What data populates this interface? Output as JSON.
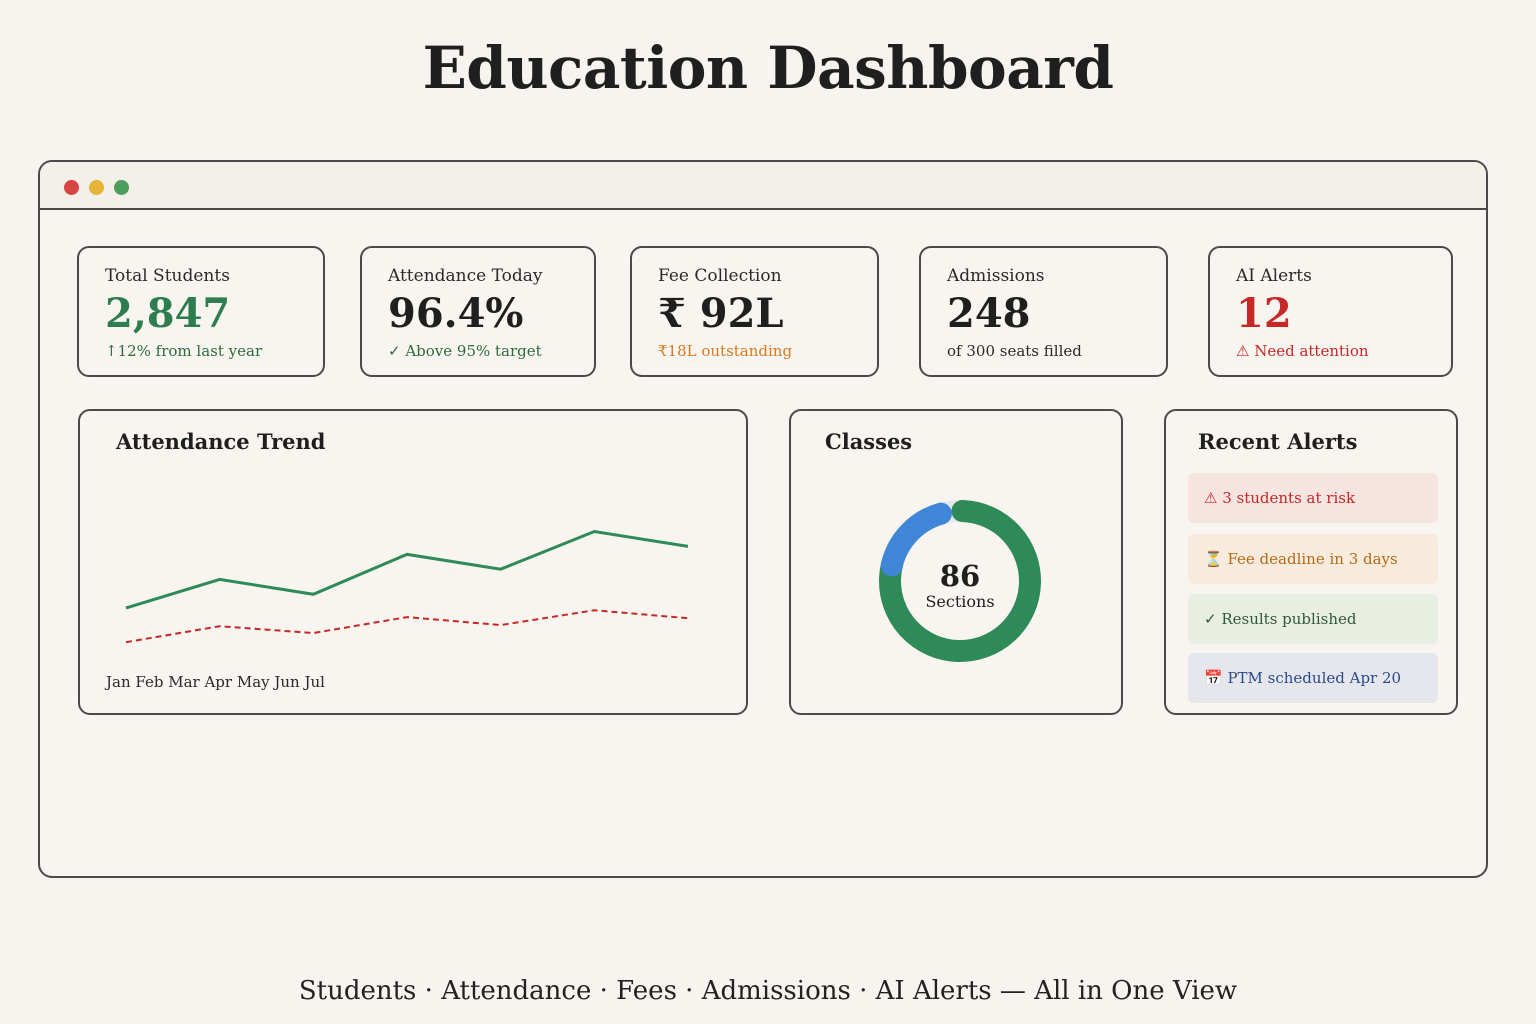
{
  "page": {
    "title": "Education Dashboard",
    "footer": "Students · Attendance · Fees · Admissions · AI Alerts — All in One View"
  },
  "colors": {
    "positive": "#2e7d4f",
    "warning": "#d97a1e",
    "danger": "#c62828",
    "accent_blue": "#3f86d8"
  },
  "kpis": [
    {
      "label": "Total Students",
      "value": "2,847",
      "sub": "↑12% from last year"
    },
    {
      "label": "Attendance Today",
      "value": "96.4%",
      "sub": "✓ Above 95% target"
    },
    {
      "label": "Fee Collection",
      "value": "₹ 92L",
      "sub": "₹18L outstanding"
    },
    {
      "label": "Admissions",
      "value": "248",
      "sub": "of 300 seats filled"
    },
    {
      "label": "AI Alerts",
      "value": "12",
      "sub": "⚠ Need attention"
    }
  ],
  "attendance_trend": {
    "title": "Attendance Trend",
    "months_label": "Jan Feb Mar Apr May Jun Jul"
  },
  "chart_data": {
    "type": "line",
    "x": [
      "Jan",
      "Feb",
      "Mar",
      "Apr",
      "May",
      "Jun",
      "Jul"
    ],
    "series": [
      {
        "style": "solid",
        "color": "#2e8b57",
        "values": [
          0.15,
          0.4,
          0.27,
          0.62,
          0.49,
          0.82,
          0.69
        ]
      },
      {
        "style": "dashed",
        "color": "#c62828",
        "values": [
          -0.15,
          -0.01,
          -0.07,
          0.07,
          0.0,
          0.13,
          0.06
        ]
      }
    ]
  },
  "classes": {
    "title": "Classes",
    "center_value": "86",
    "center_label": "Sections",
    "donut_segments": [
      {
        "color": "#2e8b57",
        "fraction": 0.78
      },
      {
        "color": "#3f86d8",
        "fraction": 0.17
      }
    ]
  },
  "recent_alerts": {
    "title": "Recent Alerts",
    "items": [
      {
        "text": "⚠ 3 students at risk"
      },
      {
        "text": "⏳ Fee deadline in 3 days"
      },
      {
        "text": "✓ Results published"
      },
      {
        "text": "📅 PTM scheduled Apr 20"
      }
    ]
  }
}
